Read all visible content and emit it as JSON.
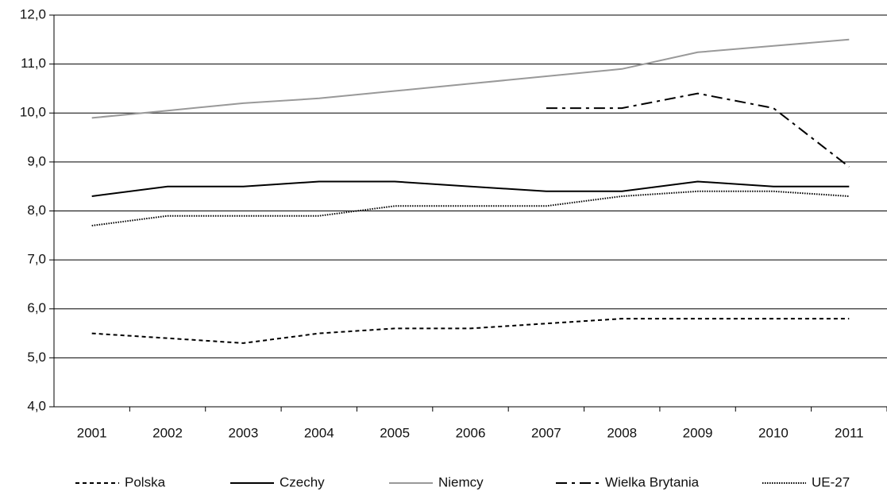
{
  "chart_data": {
    "type": "line",
    "categories": [
      "2001",
      "2002",
      "2003",
      "2004",
      "2005",
      "2006",
      "2007",
      "2008",
      "2009",
      "2010",
      "2011"
    ],
    "series": [
      {
        "name": "Polska",
        "color": "#000000",
        "dash": "5,4",
        "values": [
          5.5,
          5.4,
          5.3,
          5.5,
          5.6,
          5.6,
          5.7,
          5.8,
          5.8,
          5.8,
          5.8
        ]
      },
      {
        "name": "Czechy",
        "color": "#000000",
        "dash": "none",
        "values": [
          8.3,
          8.5,
          8.5,
          8.6,
          8.6,
          8.5,
          8.4,
          8.4,
          8.6,
          8.5,
          8.5
        ]
      },
      {
        "name": "Niemcy",
        "color": "#999999",
        "dash": "none",
        "values": [
          9.9,
          10.05,
          10.2,
          10.3,
          10.45,
          10.6,
          10.75,
          10.9,
          11.24,
          11.37,
          11.5
        ]
      },
      {
        "name": "Wielka Brytania",
        "color": "#000000",
        "dash": "14,6,4,6",
        "values": [
          null,
          null,
          null,
          null,
          null,
          null,
          10.1,
          10.1,
          10.4,
          10.1,
          8.9
        ]
      },
      {
        "name": "UE-27",
        "color": "#000000",
        "dash": "1.5,1.5",
        "values": [
          7.7,
          7.9,
          7.9,
          7.9,
          8.1,
          8.1,
          8.1,
          8.3,
          8.4,
          8.4,
          8.3
        ]
      }
    ],
    "ylim": [
      4,
      12
    ],
    "yticks": [
      {
        "value": 4,
        "label": "4,0"
      },
      {
        "value": 5,
        "label": "5,0"
      },
      {
        "value": 6,
        "label": "6,0"
      },
      {
        "value": 7,
        "label": "7,0"
      },
      {
        "value": 8,
        "label": "8,0"
      },
      {
        "value": 9,
        "label": "9,0"
      },
      {
        "value": 10,
        "label": "10,0"
      },
      {
        "value": 11,
        "label": "11,0"
      },
      {
        "value": 12,
        "label": "12,0"
      }
    ],
    "grid": true
  }
}
